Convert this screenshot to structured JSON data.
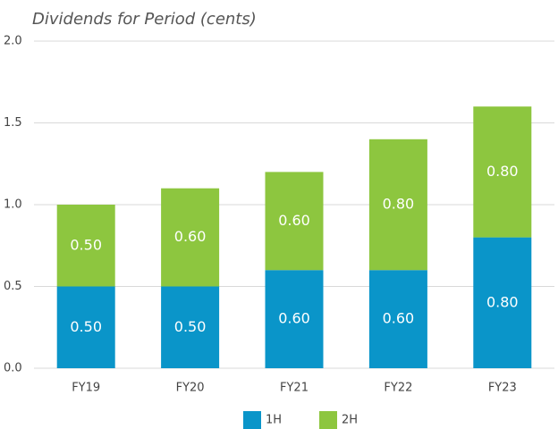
{
  "chart_data": {
    "type": "stacked_bar",
    "title": "Dividends for Period (cents)",
    "categories": [
      "FY19",
      "FY20",
      "FY21",
      "FY22",
      "FY23"
    ],
    "series": [
      {
        "name": "1H",
        "color": "#0a95c9",
        "values": [
          0.5,
          0.5,
          0.6,
          0.6,
          0.8
        ],
        "value_labels": [
          "0.50",
          "0.50",
          "0.60",
          "0.60",
          "0.80"
        ]
      },
      {
        "name": "2H",
        "color": "#8dc63f",
        "values": [
          0.5,
          0.6,
          0.6,
          0.8,
          0.8
        ],
        "value_labels": [
          "0.50",
          "0.60",
          "0.60",
          "0.80",
          "0.80"
        ]
      }
    ],
    "ylim": [
      0,
      2
    ],
    "yticks": [
      {
        "value": 0,
        "label": "0.0"
      },
      {
        "value": 0.5,
        "label": "0.5"
      },
      {
        "value": 1,
        "label": "1.0"
      },
      {
        "value": 1.5,
        "label": "1.5"
      },
      {
        "value": 2,
        "label": "2.0"
      }
    ],
    "grid": true,
    "legend": "bottom"
  }
}
